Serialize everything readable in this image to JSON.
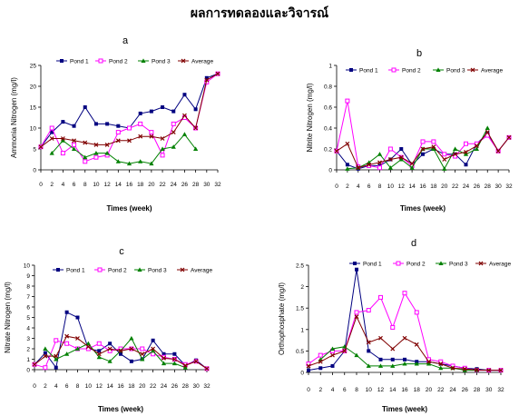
{
  "page": {
    "title": "ผลการทดลองและวิจารณ์"
  },
  "chart_data": [
    {
      "id": "a",
      "panel_label": "a",
      "type": "line",
      "ylabel": "Ammonia Nitrogen (mg/l)",
      "xlabel": "Times (week)",
      "xlim": [
        0,
        32
      ],
      "xticks": [
        0,
        2,
        4,
        6,
        8,
        10,
        12,
        14,
        16,
        18,
        20,
        22,
        24,
        26,
        28,
        30,
        32
      ],
      "ylim": [
        0,
        25
      ],
      "yticks": [
        0,
        5,
        10,
        15,
        20,
        25
      ],
      "ytick_labels": [
        "0",
        "5",
        "10",
        "15",
        "20",
        "25"
      ],
      "legend": "top",
      "series": [
        {
          "name": "Pond 1",
          "color": "#000080",
          "marker": "square",
          "x": [
            0,
            2,
            4,
            6,
            8,
            10,
            12,
            14,
            16,
            18,
            20,
            22,
            24,
            26,
            28,
            30,
            32
          ],
          "y": [
            5.5,
            9,
            11.5,
            10.5,
            15,
            11,
            11,
            10.5,
            10,
            13.5,
            14,
            15,
            14,
            18,
            14.5,
            22,
            23
          ]
        },
        {
          "name": "Pond 2",
          "color": "#FF00FF",
          "marker": "open-square",
          "x": [
            0,
            2,
            4,
            6,
            8,
            10,
            12,
            14,
            16,
            18,
            20,
            22,
            24,
            26,
            28,
            30,
            32
          ],
          "y": [
            5.5,
            10,
            4,
            6,
            2,
            3,
            3.5,
            9,
            10,
            11,
            9,
            3.5,
            11,
            12.5,
            10,
            21,
            23
          ]
        },
        {
          "name": "Pond 3",
          "color": "#008000",
          "marker": "triangle",
          "x": [
            2,
            4,
            6,
            8,
            10,
            12,
            14,
            16,
            18,
            20,
            22,
            24,
            26,
            28
          ],
          "y": [
            4,
            7,
            5,
            3,
            4,
            4,
            2,
            1.5,
            2,
            1.5,
            5,
            5.5,
            8.5,
            5
          ]
        },
        {
          "name": "Average",
          "color": "#800000",
          "marker": "x",
          "x": [
            0,
            2,
            4,
            6,
            8,
            10,
            12,
            14,
            16,
            18,
            20,
            22,
            24,
            26,
            28,
            30,
            32
          ],
          "y": [
            5.5,
            7.5,
            7.5,
            7,
            6.5,
            6,
            6,
            7,
            7,
            8,
            8,
            7.5,
            9,
            13,
            10,
            21.5,
            23
          ]
        }
      ]
    },
    {
      "id": "b",
      "panel_label": "b",
      "type": "line",
      "ylabel": "Nitrite Nitrogen (mg/l)",
      "xlabel": "Times (week)",
      "xlim": [
        0,
        32
      ],
      "xticks": [
        0,
        2,
        4,
        6,
        8,
        10,
        12,
        14,
        16,
        18,
        20,
        22,
        24,
        26,
        28,
        30,
        32
      ],
      "ylim": [
        0,
        1
      ],
      "yticks": [
        0,
        0.2,
        0.4,
        0.6,
        0.8,
        1
      ],
      "ytick_labels": [
        "0",
        "0.2",
        "0.4",
        "0.6",
        "0.8",
        "1"
      ],
      "legend": "top",
      "series": [
        {
          "name": "Pond 1",
          "color": "#000080",
          "marker": "square",
          "x": [
            0,
            2,
            4,
            6,
            8,
            10,
            12,
            14,
            16,
            18,
            20,
            22,
            24,
            26,
            28,
            30,
            32
          ],
          "y": [
            0.18,
            0.05,
            0.01,
            0.04,
            0.04,
            0.1,
            0.2,
            0.05,
            0.15,
            0.2,
            0.15,
            0.15,
            0.05,
            0.25,
            0.35,
            0.18,
            0.31
          ]
        },
        {
          "name": "Pond 2",
          "color": "#FF00FF",
          "marker": "open-square",
          "x": [
            0,
            2,
            4,
            6,
            8,
            10,
            12,
            14,
            16,
            18,
            20,
            22,
            24,
            26,
            28,
            30,
            32
          ],
          "y": [
            0.18,
            0.66,
            0.03,
            0.04,
            0.02,
            0.2,
            0.12,
            0.04,
            0.27,
            0.27,
            0.15,
            0.13,
            0.25,
            0.25,
            0.33,
            0.18,
            0.31
          ]
        },
        {
          "name": "Pond 3",
          "color": "#008000",
          "marker": "triangle",
          "x": [
            2,
            4,
            6,
            8,
            10,
            12,
            14,
            16,
            18,
            20,
            22,
            24,
            26,
            28
          ],
          "y": [
            0.01,
            0.02,
            0.07,
            0.15,
            0.02,
            0.1,
            0.02,
            0.2,
            0.2,
            0.01,
            0.2,
            0.15,
            0.2,
            0.4
          ]
        },
        {
          "name": "Average",
          "color": "#800000",
          "marker": "x",
          "x": [
            0,
            2,
            4,
            6,
            8,
            10,
            12,
            14,
            16,
            18,
            20,
            22,
            24,
            26,
            28,
            30,
            32
          ],
          "y": [
            0.18,
            0.25,
            0.02,
            0.05,
            0.07,
            0.1,
            0.12,
            0.06,
            0.2,
            0.22,
            0.1,
            0.15,
            0.17,
            0.23,
            0.36,
            0.18,
            0.31
          ]
        }
      ]
    },
    {
      "id": "c",
      "panel_label": "c",
      "type": "line",
      "ylabel": "Nitrate Nitrogen (mg/l)",
      "xlabel": "Times (week)",
      "xlim": [
        0,
        32
      ],
      "xticks": [
        0,
        2,
        4,
        6,
        8,
        10,
        12,
        14,
        16,
        18,
        20,
        22,
        24,
        26,
        28,
        30,
        32
      ],
      "ylim": [
        0,
        10
      ],
      "yticks": [
        0,
        1,
        2,
        3,
        4,
        5,
        6,
        7,
        8,
        9,
        10
      ],
      "ytick_labels": [
        "0",
        "1",
        "2",
        "3",
        "4",
        "5",
        "6",
        "7",
        "8",
        "9",
        "10"
      ],
      "legend": "top",
      "series": [
        {
          "name": "Pond 1",
          "color": "#000080",
          "marker": "square",
          "x": [
            0,
            2,
            4,
            6,
            8,
            10,
            12,
            14,
            16,
            18,
            20,
            22,
            24,
            26,
            28,
            30,
            32
          ],
          "y": [
            0.5,
            1.6,
            0.2,
            5.5,
            5,
            2,
            1.8,
            2.5,
            1.5,
            0.8,
            1,
            2.8,
            1.5,
            1.5,
            0.4,
            0.9,
            0.1
          ]
        },
        {
          "name": "Pond 2",
          "color": "#FF00FF",
          "marker": "open-square",
          "x": [
            0,
            2,
            4,
            6,
            8,
            10,
            12,
            14,
            16,
            18,
            20,
            22,
            24,
            26,
            28,
            30,
            32
          ],
          "y": [
            0.5,
            0.2,
            2.8,
            2.5,
            2,
            2,
            2.5,
            1.8,
            2,
            2,
            2,
            1.5,
            1.2,
            1,
            0.5,
            0.8,
            0.1
          ]
        },
        {
          "name": "Pond 3",
          "color": "#008000",
          "marker": "triangle",
          "x": [
            2,
            4,
            6,
            8,
            10,
            12,
            14,
            16,
            18,
            20,
            22,
            24,
            26,
            28
          ],
          "y": [
            2,
            1,
            1.5,
            2,
            2.5,
            1.2,
            0.8,
            1.8,
            3,
            1,
            1.8,
            0.6,
            0.6,
            0.2
          ]
        },
        {
          "name": "Average",
          "color": "#800000",
          "marker": "x",
          "x": [
            0,
            2,
            4,
            6,
            8,
            10,
            12,
            14,
            16,
            18,
            20,
            22,
            24,
            26,
            28,
            30,
            32
          ],
          "y": [
            0.5,
            1.3,
            1.3,
            3.2,
            3,
            2.2,
            1.5,
            2,
            1.8,
            2,
            1.5,
            2,
            1.1,
            1,
            0.4,
            0.8,
            0.1
          ]
        }
      ]
    },
    {
      "id": "d",
      "panel_label": "d",
      "type": "line",
      "ylabel": "Orthophosphate (mg/l)",
      "xlabel": "Times (week)",
      "xlim": [
        0,
        32
      ],
      "xticks": [
        0,
        2,
        4,
        6,
        8,
        10,
        12,
        14,
        16,
        18,
        20,
        22,
        24,
        26,
        28,
        30,
        32
      ],
      "ylim": [
        0,
        2.5
      ],
      "yticks": [
        0,
        0.5,
        1,
        1.5,
        2,
        2.5
      ],
      "ytick_labels": [
        "0",
        "0.5",
        "1",
        "1.5",
        "2",
        "2.5"
      ],
      "legend": "top",
      "series": [
        {
          "name": "Pond 1",
          "color": "#000080",
          "marker": "square",
          "x": [
            0,
            2,
            4,
            6,
            8,
            10,
            12,
            14,
            16,
            18,
            20,
            22,
            24,
            26,
            28,
            30,
            32
          ],
          "y": [
            0.05,
            0.1,
            0.15,
            0.5,
            2.4,
            0.5,
            0.3,
            0.3,
            0.3,
            0.25,
            0.25,
            0.2,
            0.15,
            0.1,
            0.08,
            0.05,
            0.05
          ]
        },
        {
          "name": "Pond 2",
          "color": "#FF00FF",
          "marker": "open-square",
          "x": [
            0,
            2,
            4,
            6,
            8,
            10,
            12,
            14,
            16,
            18,
            20,
            22,
            24,
            26,
            28,
            30,
            32
          ],
          "y": [
            0.2,
            0.4,
            0.5,
            0.5,
            1.4,
            1.45,
            1.75,
            1.05,
            1.85,
            1.4,
            0.3,
            0.25,
            0.15,
            0.1,
            0.05,
            0.05,
            0.05
          ]
        },
        {
          "name": "Pond 3",
          "color": "#008000",
          "marker": "triangle",
          "x": [
            2,
            4,
            6,
            8,
            10,
            12,
            14,
            16,
            18,
            20,
            22,
            24,
            26,
            28
          ],
          "y": [
            0.3,
            0.55,
            0.6,
            0.4,
            0.15,
            0.15,
            0.15,
            0.2,
            0.2,
            0.2,
            0.1,
            0.1,
            0.05,
            0.05
          ]
        },
        {
          "name": "Average",
          "color": "#800000",
          "marker": "x",
          "x": [
            0,
            2,
            4,
            6,
            8,
            10,
            12,
            14,
            16,
            18,
            20,
            22,
            24,
            26,
            28,
            30,
            32
          ],
          "y": [
            0.15,
            0.25,
            0.4,
            0.5,
            1.3,
            0.7,
            0.8,
            0.55,
            0.8,
            0.65,
            0.25,
            0.2,
            0.1,
            0.08,
            0.06,
            0.05,
            0.05
          ]
        }
      ]
    }
  ]
}
